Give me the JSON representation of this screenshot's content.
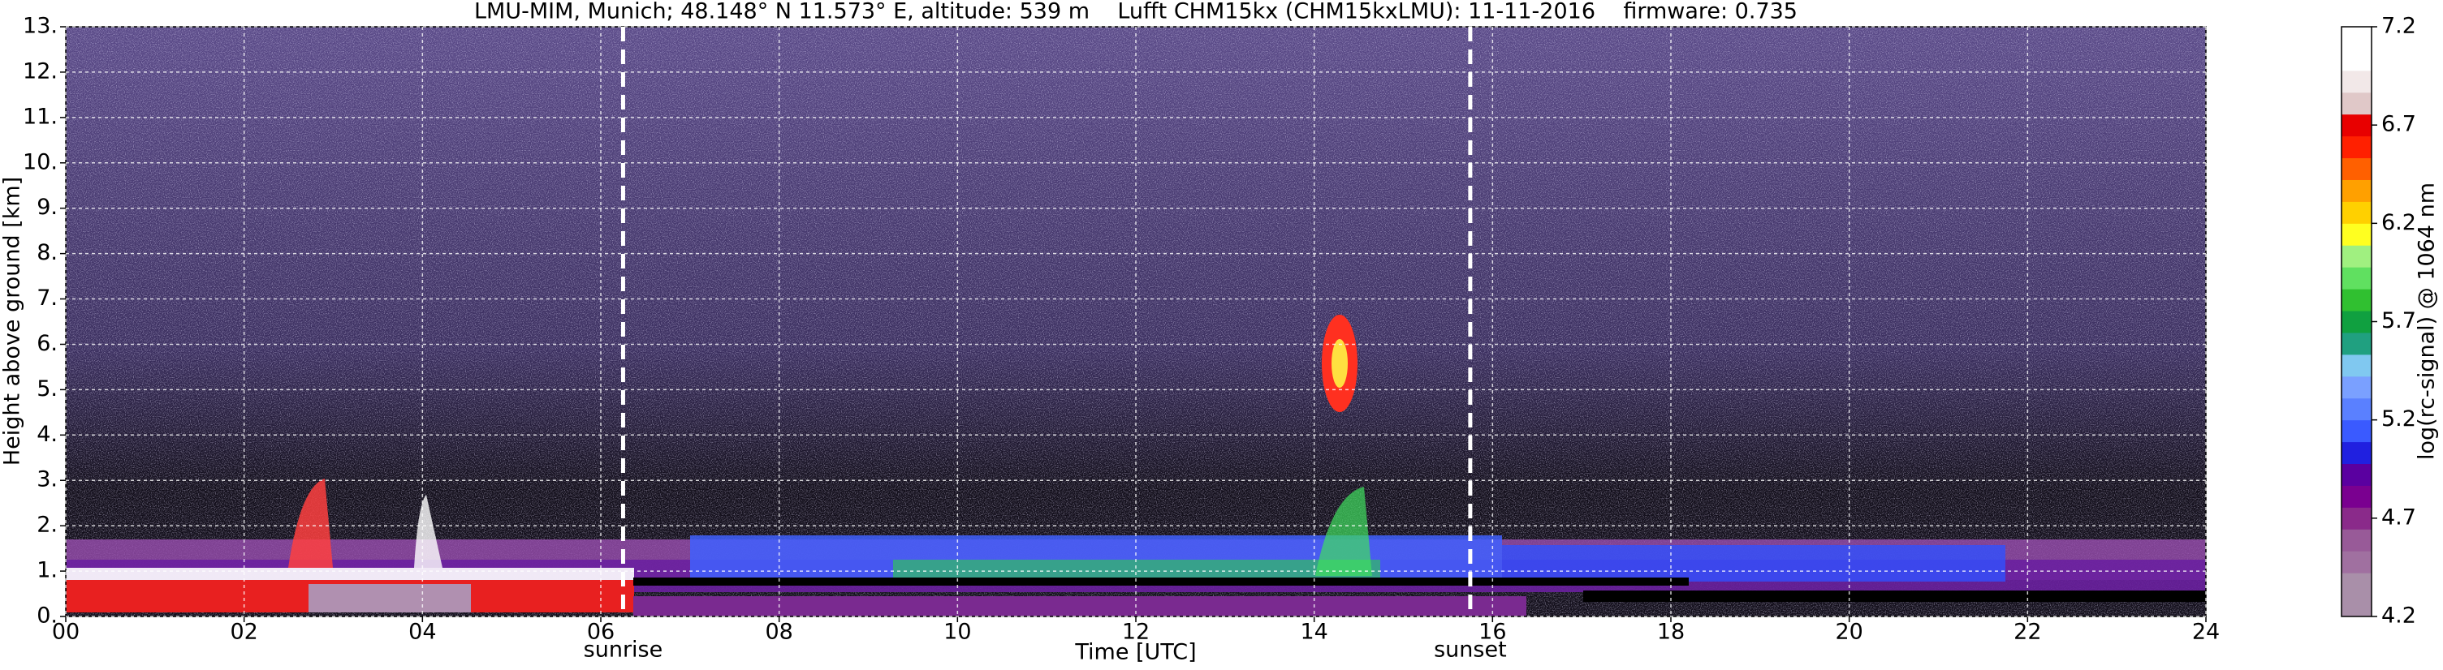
{
  "chart_data": {
    "type": "heatmap",
    "title": "LMU-MIM, Munich; 48.148° N 11.573° E, altitude: 539 m    Lufft CHM15kx (CHM15kxLMU): 11-11-2016    firmware: 0.735",
    "xlabel": "Time [UTC]",
    "ylabel": "Height above ground [km]",
    "xlim": [
      0,
      24
    ],
    "ylim": [
      0,
      13
    ],
    "xticks": [
      {
        "value": 0,
        "label": "00"
      },
      {
        "value": 2,
        "label": "02"
      },
      {
        "value": 4,
        "label": "04"
      },
      {
        "value": 6,
        "label": "06"
      },
      {
        "value": 8,
        "label": "08"
      },
      {
        "value": 10,
        "label": "10"
      },
      {
        "value": 12,
        "label": "12"
      },
      {
        "value": 14,
        "label": "14"
      },
      {
        "value": 16,
        "label": "16"
      },
      {
        "value": 18,
        "label": "18"
      },
      {
        "value": 20,
        "label": "20"
      },
      {
        "value": 22,
        "label": "22"
      },
      {
        "value": 24,
        "label": "24"
      }
    ],
    "yticks": [
      {
        "value": 0,
        "label": "0."
      },
      {
        "value": 1,
        "label": "1."
      },
      {
        "value": 2,
        "label": "2."
      },
      {
        "value": 3,
        "label": "3."
      },
      {
        "value": 4,
        "label": "4."
      },
      {
        "value": 5,
        "label": "5."
      },
      {
        "value": 6,
        "label": "6."
      },
      {
        "value": 7,
        "label": "7."
      },
      {
        "value": 8,
        "label": "8."
      },
      {
        "value": 9,
        "label": "9."
      },
      {
        "value": 10,
        "label": "10."
      },
      {
        "value": 11,
        "label": "11."
      },
      {
        "value": 12,
        "label": "12."
      },
      {
        "value": 13,
        "label": "13."
      }
    ],
    "grid": true,
    "annotations": [
      {
        "text": "sunrise",
        "x": 6.25
      },
      {
        "text": "sunset",
        "x": 15.75
      }
    ],
    "colorbar": {
      "label": "log(rc-signal) @ 1064 nm",
      "clim": [
        4.2,
        7.2
      ],
      "ticks": [
        4.2,
        4.7,
        5.2,
        5.7,
        6.2,
        6.7,
        7.2
      ],
      "colors": [
        "#a98fa9",
        "#a98fa9",
        "#a070a0",
        "#985a98",
        "#8a2a8a",
        "#7a0090",
        "#5a00a0",
        "#2020e0",
        "#3a5aff",
        "#5a80ff",
        "#7aa0ff",
        "#80c8f0",
        "#20a080",
        "#10a040",
        "#30c030",
        "#60e060",
        "#a0f080",
        "#ffff20",
        "#ffd000",
        "#ffa000",
        "#ff6000",
        "#ff2000",
        "#e80000",
        "#e0c8c8",
        "#f2e8e8",
        "#ffffff",
        "#ffffff"
      ]
    }
  }
}
